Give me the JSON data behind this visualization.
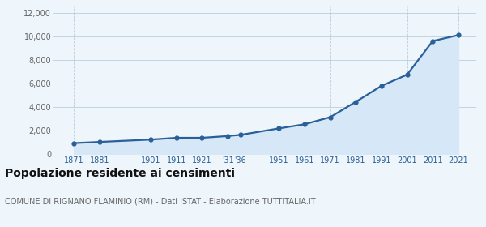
{
  "years": [
    1871,
    1881,
    1901,
    1911,
    1921,
    1931,
    1936,
    1951,
    1961,
    1971,
    1981,
    1991,
    2001,
    2011,
    2021
  ],
  "population": [
    950,
    1050,
    1250,
    1400,
    1400,
    1550,
    1650,
    2200,
    2550,
    3150,
    4450,
    5800,
    6750,
    9600,
    10100
  ],
  "line_color": "#2a6099",
  "fill_color": "#d6e8f7",
  "marker_color": "#2a6099",
  "grid_color": "#b8cfe0",
  "background_color": "#eef5fb",
  "plot_bg_color": "#eef5fb",
  "title": "Popolazione residente ai censimenti",
  "subtitle": "COMUNE DI RIGNANO FLAMINIO (RM) - Dati ISTAT - Elaborazione TUTTITALIA.IT",
  "ylabel_ticks": [
    0,
    2000,
    4000,
    6000,
    8000,
    10000,
    12000
  ],
  "ylim": [
    0,
    12500
  ],
  "xlim": [
    1863,
    2028
  ],
  "title_fontsize": 10,
  "subtitle_fontsize": 7,
  "tick_fontsize": 7,
  "ytick_color": "#666666",
  "xtick_color": "#2a6099"
}
